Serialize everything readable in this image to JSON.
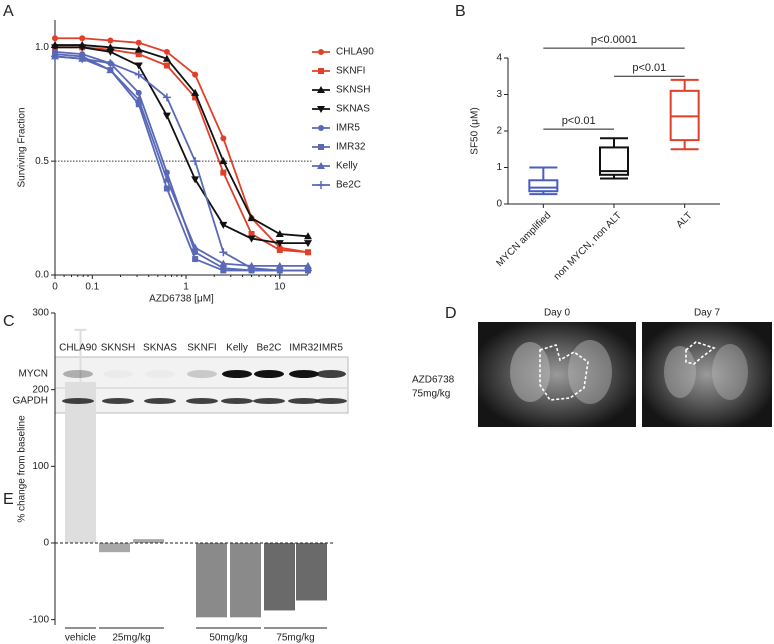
{
  "panel_labels": [
    "A",
    "B",
    "C",
    "D",
    "E"
  ],
  "chart_data": [
    {
      "type": "line",
      "xlabel": "AZD6738 [μM]",
      "ylabel": "Surviving Fraction",
      "log_x": true,
      "x": [
        0.04,
        0.078,
        0.156,
        0.313,
        0.625,
        1.25,
        2.5,
        5,
        10,
        20
      ],
      "xlim": [
        0.04,
        20
      ],
      "xticks": [
        {
          "value": 0.04,
          "label": "0"
        },
        0.1,
        1,
        10
      ],
      "ylim": [
        0,
        1.12
      ],
      "yticks": [
        {
          "value": 0,
          "label": "0.0"
        },
        {
          "value": 0.5,
          "label": "0.5"
        },
        {
          "value": 1,
          "label": "1.0"
        }
      ],
      "hline": 0.5,
      "series": [
        {
          "name": "CHLA90",
          "color": "#e0402a",
          "marker": "circle",
          "values": [
            1.04,
            1.04,
            1.03,
            1.02,
            0.98,
            0.88,
            0.6,
            0.25,
            0.12,
            0.1
          ]
        },
        {
          "name": "SKNFI",
          "color": "#e0402a",
          "marker": "square",
          "values": [
            1.0,
            1.0,
            0.99,
            0.97,
            0.92,
            0.78,
            0.45,
            0.18,
            0.11,
            0.1
          ]
        },
        {
          "name": "SKNSH",
          "color": "#111111",
          "marker": "triangle-up",
          "values": [
            1.01,
            1.01,
            1.0,
            0.99,
            0.95,
            0.8,
            0.5,
            0.25,
            0.18,
            0.17
          ]
        },
        {
          "name": "SKNAS",
          "color": "#111111",
          "marker": "triangle-down",
          "values": [
            1.0,
            1.0,
            0.98,
            0.92,
            0.7,
            0.42,
            0.22,
            0.16,
            0.14,
            0.14
          ]
        },
        {
          "name": "IMR5",
          "color": "#5a68b8",
          "marker": "circle",
          "values": [
            0.98,
            0.97,
            0.93,
            0.8,
            0.45,
            0.1,
            0.03,
            0.02,
            0.02,
            0.02
          ]
        },
        {
          "name": "IMR32",
          "color": "#5a68b8",
          "marker": "square",
          "values": [
            0.97,
            0.96,
            0.9,
            0.75,
            0.38,
            0.07,
            0.02,
            0.02,
            0.02,
            0.02
          ]
        },
        {
          "name": "Kelly",
          "color": "#5a68b8",
          "marker": "triangle-up",
          "values": [
            0.96,
            0.95,
            0.9,
            0.77,
            0.42,
            0.12,
            0.05,
            0.04,
            0.04,
            0.04
          ]
        },
        {
          "name": "Be2C",
          "color": "#5a68b8",
          "marker": "plus",
          "values": [
            0.96,
            0.95,
            0.93,
            0.88,
            0.78,
            0.5,
            0.1,
            0.03,
            0.02,
            0.02
          ]
        }
      ]
    },
    {
      "type": "box",
      "ylabel": "SF50 (μM)",
      "categories": [
        "MYCN amplified",
        "non MYCN, non ALT",
        "ALT"
      ],
      "colors": [
        "#4a5cc0",
        "#111111",
        "#e0402a"
      ],
      "boxes": [
        {
          "min": 0.27,
          "q1": 0.35,
          "median": 0.45,
          "q3": 0.65,
          "max": 1.0
        },
        {
          "min": 0.7,
          "q1": 0.8,
          "median": 0.9,
          "q3": 1.55,
          "max": 1.8
        },
        {
          "min": 1.5,
          "q1": 1.75,
          "median": 2.4,
          "q3": 3.1,
          "max": 3.4
        }
      ],
      "ylim": [
        0,
        4
      ],
      "yticks": [
        0,
        1,
        2,
        3,
        4
      ],
      "brackets": [
        {
          "label": "p<0.0001",
          "y": 4.27
        },
        {
          "label": "p<0.01",
          "y": 3.5
        },
        {
          "label": "p<0.01",
          "y": 2.05
        }
      ]
    },
    {
      "type": "grouped_bar",
      "ylabel": "% change from baseline",
      "categories": [
        "vehicle",
        "25mg/kg",
        "50mg/kg",
        "75mg/kg"
      ],
      "colors": [
        "#dedede",
        "#a8a8a8",
        "#8a8a8a",
        "#6a6a6a"
      ],
      "groups": [
        {
          "values": [
            210
          ],
          "errors": [
            68
          ]
        },
        {
          "values": [
            -12,
            5
          ]
        },
        {
          "values": [
            -97,
            -97
          ]
        },
        {
          "values": [
            -88,
            -75
          ]
        }
      ],
      "ylim": [
        -107,
        300
      ],
      "yticks": [
        -100,
        0,
        100,
        200,
        300
      ],
      "hline": 0
    }
  ],
  "blot": {
    "lanes": [
      "CHLA90",
      "SKNSH",
      "SKNAS",
      "SKNFI",
      "Kelly",
      "Be2C",
      "IMR32",
      "IMR5"
    ],
    "rows": [
      "MYCN",
      "GAPDH"
    ]
  },
  "imaging": {
    "days": [
      "Day 0",
      "Day 7"
    ],
    "treatment": [
      "AZD6738",
      "75mg/kg"
    ]
  }
}
